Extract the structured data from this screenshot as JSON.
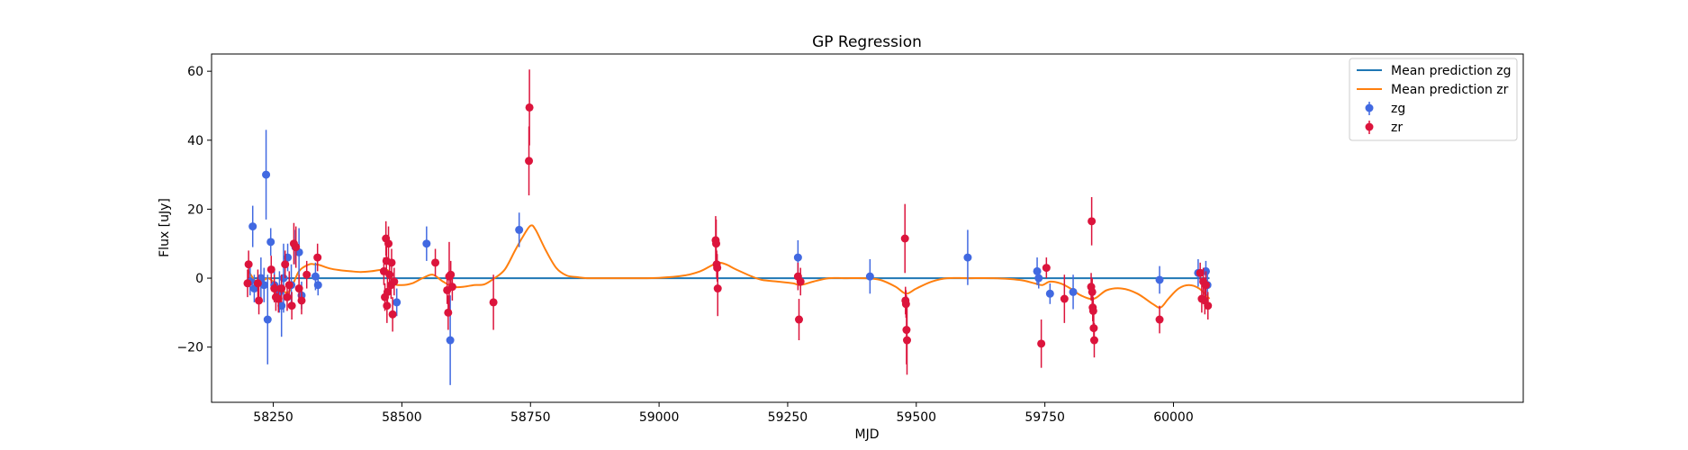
{
  "chart_data": {
    "type": "scatter",
    "title": "GP Regression",
    "xlabel": "MJD",
    "ylabel": "Flux [uJy]",
    "xlim": [
      58130,
      60680
    ],
    "ylim": [
      -36,
      65
    ],
    "xticks": [
      58250,
      58500,
      58750,
      59000,
      59250,
      59500,
      59750,
      60000
    ],
    "yticks": [
      -20,
      0,
      20,
      40,
      60
    ],
    "grid": false,
    "legend_position": "top-right",
    "legend": [
      "Mean prediction zg",
      "Mean prediction zr",
      "zg",
      "zr"
    ],
    "colors": {
      "zg_points": "#4169e1",
      "zr_points": "#dc143c",
      "zg_line": "#1f77b4",
      "zr_line": "#ff7f0e"
    },
    "series": [
      {
        "name": "zg",
        "kind": "errorbar",
        "points": [
          {
            "x": 58205,
            "y": -1,
            "err": 4
          },
          {
            "x": 58210,
            "y": 15,
            "err": 6
          },
          {
            "x": 58213,
            "y": -3,
            "err": 4
          },
          {
            "x": 58226,
            "y": 0,
            "err": 6
          },
          {
            "x": 58232,
            "y": -2,
            "err": 5
          },
          {
            "x": 58236,
            "y": 30,
            "err": 13
          },
          {
            "x": 58239,
            "y": -12,
            "err": 13
          },
          {
            "x": 58245,
            "y": 10.5,
            "err": 4
          },
          {
            "x": 58252,
            "y": -2,
            "err": 5
          },
          {
            "x": 58262,
            "y": -4,
            "err": 6
          },
          {
            "x": 58266,
            "y": -8,
            "err": 9
          },
          {
            "x": 58270,
            "y": 0,
            "err": 10
          },
          {
            "x": 58278,
            "y": 6,
            "err": 4
          },
          {
            "x": 58285,
            "y": -2,
            "err": 6
          },
          {
            "x": 58293,
            "y": 9,
            "err": 5
          },
          {
            "x": 58300,
            "y": 7.5,
            "err": 7
          },
          {
            "x": 58305,
            "y": -5,
            "err": 4
          },
          {
            "x": 58332,
            "y": 0.5,
            "err": 4
          },
          {
            "x": 58337,
            "y": -2,
            "err": 3
          },
          {
            "x": 58490,
            "y": -7,
            "err": 4
          },
          {
            "x": 58548,
            "y": 10,
            "err": 5
          },
          {
            "x": 58594,
            "y": -18,
            "err": 13
          },
          {
            "x": 58728,
            "y": 14,
            "err": 5
          },
          {
            "x": 59270,
            "y": 6,
            "err": 5
          },
          {
            "x": 59410,
            "y": 0.5,
            "err": 5
          },
          {
            "x": 59600,
            "y": 6,
            "err": 8
          },
          {
            "x": 59735,
            "y": 2,
            "err": 4
          },
          {
            "x": 59738,
            "y": 0,
            "err": 3
          },
          {
            "x": 59760,
            "y": -4.5,
            "err": 3
          },
          {
            "x": 59805,
            "y": -4,
            "err": 5
          },
          {
            "x": 59973,
            "y": -0.5,
            "err": 4
          },
          {
            "x": 60048,
            "y": 1.5,
            "err": 4
          },
          {
            "x": 60063,
            "y": 2,
            "err": 3
          },
          {
            "x": 60066,
            "y": -2,
            "err": 3
          }
        ]
      },
      {
        "name": "zr",
        "kind": "errorbar",
        "points": [
          {
            "x": 58200,
            "y": -1.5,
            "err": 4
          },
          {
            "x": 58202,
            "y": 4,
            "err": 4
          },
          {
            "x": 58220,
            "y": -1.5,
            "err": 4
          },
          {
            "x": 58222,
            "y": -6.5,
            "err": 4
          },
          {
            "x": 58246,
            "y": 2.5,
            "err": 4
          },
          {
            "x": 58252,
            "y": -3,
            "err": 4
          },
          {
            "x": 58255,
            "y": -5.5,
            "err": 4
          },
          {
            "x": 58260,
            "y": -6,
            "err": 4
          },
          {
            "x": 58266,
            "y": -3,
            "err": 4
          },
          {
            "x": 58273,
            "y": 4,
            "err": 4
          },
          {
            "x": 58277,
            "y": -5.5,
            "err": 4
          },
          {
            "x": 58281,
            "y": -2,
            "err": 4
          },
          {
            "x": 58286,
            "y": -8,
            "err": 4
          },
          {
            "x": 58290,
            "y": 10,
            "err": 6
          },
          {
            "x": 58294,
            "y": 9,
            "err": 6
          },
          {
            "x": 58300,
            "y": -3,
            "err": 4
          },
          {
            "x": 58305,
            "y": -6.5,
            "err": 4
          },
          {
            "x": 58315,
            "y": 1,
            "err": 4
          },
          {
            "x": 58336,
            "y": 6,
            "err": 4
          },
          {
            "x": 58465,
            "y": 2,
            "err": 4
          },
          {
            "x": 58467,
            "y": -5.5,
            "err": 4
          },
          {
            "x": 58469,
            "y": 11.5,
            "err": 5
          },
          {
            "x": 58470,
            "y": 5,
            "err": 4
          },
          {
            "x": 58471,
            "y": -8,
            "err": 5
          },
          {
            "x": 58472,
            "y": -4,
            "err": 4
          },
          {
            "x": 58474,
            "y": 10,
            "err": 5
          },
          {
            "x": 58476,
            "y": 1,
            "err": 4
          },
          {
            "x": 58479,
            "y": -2,
            "err": 4
          },
          {
            "x": 58480,
            "y": 4.5,
            "err": 4
          },
          {
            "x": 58482,
            "y": -10.5,
            "err": 5
          },
          {
            "x": 58485,
            "y": -1,
            "err": 4
          },
          {
            "x": 58565,
            "y": 4.5,
            "err": 4
          },
          {
            "x": 58588,
            "y": -3.5,
            "err": 4
          },
          {
            "x": 58590,
            "y": -10,
            "err": 5
          },
          {
            "x": 58592,
            "y": 0.5,
            "err": 10
          },
          {
            "x": 58595,
            "y": 1,
            "err": 4
          },
          {
            "x": 58598,
            "y": -2.5,
            "err": 4
          },
          {
            "x": 58678,
            "y": -7,
            "err": 8
          },
          {
            "x": 58747,
            "y": 34,
            "err": 10
          },
          {
            "x": 58748,
            "y": 49.5,
            "err": 11
          },
          {
            "x": 59110,
            "y": 11,
            "err": 7
          },
          {
            "x": 59111,
            "y": 10,
            "err": 7
          },
          {
            "x": 59112,
            "y": 4,
            "err": 4
          },
          {
            "x": 59113,
            "y": 3,
            "err": 4
          },
          {
            "x": 59114,
            "y": -3,
            "err": 8
          },
          {
            "x": 59270,
            "y": 0.5,
            "err": 4
          },
          {
            "x": 59272,
            "y": -12,
            "err": 6
          },
          {
            "x": 59275,
            "y": -1,
            "err": 4
          },
          {
            "x": 59478,
            "y": 11.5,
            "err": 10
          },
          {
            "x": 59479,
            "y": -6.5,
            "err": 4
          },
          {
            "x": 59480,
            "y": -7.5,
            "err": 4
          },
          {
            "x": 59481,
            "y": -15,
            "err": 10
          },
          {
            "x": 59482,
            "y": -18,
            "err": 10
          },
          {
            "x": 59743,
            "y": -19,
            "err": 7
          },
          {
            "x": 59753,
            "y": 3,
            "err": 3
          },
          {
            "x": 59788,
            "y": -6,
            "err": 7
          },
          {
            "x": 59840,
            "y": -2.5,
            "err": 4
          },
          {
            "x": 59841,
            "y": 16.5,
            "err": 7
          },
          {
            "x": 59842,
            "y": -4,
            "err": 4
          },
          {
            "x": 59843,
            "y": -8.5,
            "err": 4
          },
          {
            "x": 59844,
            "y": -9.5,
            "err": 4
          },
          {
            "x": 59845,
            "y": -14.5,
            "err": 4
          },
          {
            "x": 59846,
            "y": -18,
            "err": 5
          },
          {
            "x": 59973,
            "y": -12,
            "err": 4
          },
          {
            "x": 60052,
            "y": 1.5,
            "err": 3
          },
          {
            "x": 60055,
            "y": -6,
            "err": 4
          },
          {
            "x": 60058,
            "y": -1,
            "err": 4
          },
          {
            "x": 60061,
            "y": -6.5,
            "err": 4
          },
          {
            "x": 60063,
            "y": -2,
            "err": 4
          },
          {
            "x": 60067,
            "y": -8,
            "err": 4
          }
        ]
      },
      {
        "name": "Mean prediction zg",
        "kind": "line",
        "x": [
          58200,
          60070
        ],
        "y": [
          0,
          0
        ]
      },
      {
        "name": "Mean prediction zr",
        "kind": "line",
        "x": [
          58200,
          58220,
          58240,
          58260,
          58280,
          58300,
          58320,
          58330,
          58340,
          58360,
          58380,
          58400,
          58420,
          58440,
          58460,
          58475,
          58485,
          58500,
          58520,
          58540,
          58560,
          58580,
          58600,
          58620,
          58640,
          58660,
          58680,
          58700,
          58720,
          58735,
          58750,
          58760,
          58780,
          58800,
          58820,
          58840,
          58860,
          58900,
          58950,
          59000,
          59050,
          59080,
          59100,
          59115,
          59130,
          59150,
          59180,
          59200,
          59230,
          59260,
          59275,
          59300,
          59330,
          59360,
          59400,
          59430,
          59460,
          59480,
          59500,
          59530,
          59560,
          59600,
          59650,
          59700,
          59730,
          59745,
          59760,
          59780,
          59800,
          59820,
          59845,
          59870,
          59900,
          59930,
          59960,
          59975,
          59990,
          60010,
          60030,
          60050,
          60070
        ],
        "y": [
          2.5,
          -1.5,
          0,
          -2.5,
          -4,
          2,
          4,
          4,
          3.8,
          2.8,
          2.3,
          2,
          1.8,
          2,
          2.4,
          2,
          -1.5,
          -2,
          -1.5,
          0,
          1,
          -1,
          -2.5,
          -2.5,
          -2,
          -1.8,
          0,
          2.5,
          8,
          12,
          15.2,
          14,
          8,
          3,
          0.8,
          0.3,
          0,
          0,
          0,
          0.1,
          0.8,
          2,
          3.5,
          4.5,
          4,
          2.5,
          0.5,
          -0.5,
          -1,
          -1.5,
          -2,
          -1,
          0,
          0,
          0,
          -0.5,
          -2.5,
          -4.5,
          -3,
          -1,
          0,
          0,
          0,
          -0.5,
          -1.5,
          -2,
          -1,
          -1.5,
          -3,
          -5,
          -6,
          -3.5,
          -3,
          -4.5,
          -7.5,
          -8.5,
          -6,
          -3,
          -2,
          -3,
          -6
        ]
      }
    ]
  }
}
